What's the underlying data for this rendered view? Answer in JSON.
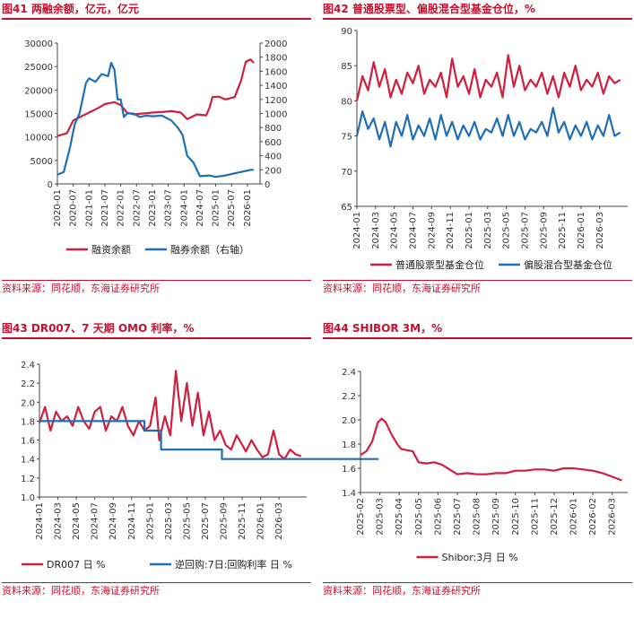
{
  "colors": {
    "red": "#d21e3c",
    "blue": "#1f6fb8",
    "accent": "#c8102e"
  },
  "charts": [
    {
      "id": "c41",
      "title": "图41 两融余额，亿元，亿元",
      "source": "资料来源：同花顺，东海证券研究所",
      "chart_data": {
        "type": "line",
        "x_ticks": [
          "2020-01",
          "2020-07",
          "2021-01",
          "2021-07",
          "2022-01",
          "2022-07",
          "2023-01",
          "2023-07",
          "2024-01",
          "2024-07",
          "2025-01",
          "2025-07",
          "2026-01"
        ],
        "y_left": {
          "min": 0,
          "max": 30000,
          "ticks": [
            0,
            5000,
            10000,
            15000,
            20000,
            25000,
            30000
          ]
        },
        "y_right": {
          "min": 0,
          "max": 2000,
          "ticks": [
            0,
            200,
            400,
            600,
            800,
            1000,
            1200,
            1400,
            1600,
            1800,
            2000
          ]
        },
        "series": [
          {
            "name": "融资余额",
            "axis": "left",
            "color": "#d21e3c",
            "x": [
              2020.0,
              2020.3,
              2020.5,
              2020.7,
              2021.0,
              2021.3,
              2021.5,
              2021.8,
              2022.0,
              2022.2,
              2022.4,
              2022.7,
              2023.0,
              2023.3,
              2023.6,
              2023.9,
              2024.0,
              2024.1,
              2024.4,
              2024.7,
              2024.8,
              2024.9,
              2025.1,
              2025.3,
              2025.6,
              2025.8,
              2025.95,
              2026.1,
              2026.2
            ],
            "values": [
              10200,
              10800,
              13500,
              14200,
              15200,
              16200,
              17000,
              17400,
              16800,
              15200,
              14800,
              15000,
              15200,
              15300,
              15500,
              15200,
              14500,
              13800,
              14800,
              14600,
              16200,
              18500,
              18600,
              18000,
              18500,
              22000,
              26000,
              26500,
              25800
            ]
          },
          {
            "name": "融券余额（右轴）",
            "axis": "right",
            "color": "#1f6fb8",
            "x": [
              2020.0,
              2020.2,
              2020.4,
              2020.55,
              2020.7,
              2020.9,
              2021.0,
              2021.2,
              2021.4,
              2021.6,
              2021.7,
              2021.8,
              2021.9,
              2022.0,
              2022.1,
              2022.2,
              2022.4,
              2022.6,
              2022.8,
              2023.0,
              2023.3,
              2023.6,
              2023.8,
              2023.95,
              2024.1,
              2024.3,
              2024.5,
              2024.8,
              2025.0,
              2025.3,
              2025.6,
              2025.9,
              2026.1,
              2026.2
            ],
            "values": [
              130,
              170,
              520,
              850,
              1000,
              1430,
              1500,
              1450,
              1560,
              1530,
              1720,
              1620,
              1200,
              1200,
              950,
              1000,
              1000,
              950,
              970,
              960,
              970,
              900,
              800,
              700,
              400,
              300,
              110,
              120,
              100,
              120,
              150,
              180,
              200,
              200
            ]
          }
        ]
      }
    },
    {
      "id": "c42",
      "title": "图42 普通股票型、偏股混合型基金仓位，%",
      "source": "资料来源：同花顺，东海证券研究所",
      "chart_data": {
        "type": "line",
        "x_ticks": [
          "2024-01",
          "2024-03",
          "2024-05",
          "2024-07",
          "2024-09",
          "2024-11",
          "2025-01",
          "2025-03",
          "2025-05",
          "2025-07",
          "2025-09",
          "2025-11",
          "2026-01",
          "2026-03"
        ],
        "y_left": {
          "min": 65,
          "max": 90,
          "ticks": [
            65,
            70,
            75,
            80,
            85,
            90
          ]
        },
        "series": [
          {
            "name": "普通股票型基金仓位",
            "color": "#d21e3c",
            "x": [
              0,
              0.3,
              0.6,
              0.9,
              1.2,
              1.5,
              1.8,
              2.1,
              2.4,
              2.7,
              3.0,
              3.3,
              3.6,
              3.9,
              4.2,
              4.5,
              4.8,
              5.1,
              5.4,
              5.7,
              6.0,
              6.3,
              6.6,
              6.9,
              7.2,
              7.5,
              7.8,
              8.1,
              8.4,
              8.7,
              9.0,
              9.3,
              9.6,
              9.9,
              10.2,
              10.5,
              10.8,
              11.1,
              11.4,
              11.7,
              12.0,
              12.3,
              12.6,
              12.9,
              13.2,
              13.5,
              13.8,
              14.1
            ],
            "values": [
              80,
              83.5,
              81.5,
              85.5,
              82,
              84.5,
              80.5,
              83,
              81,
              84,
              82.5,
              85,
              81,
              83,
              82,
              84,
              80.5,
              86,
              82,
              83.5,
              81,
              84.5,
              80.5,
              83,
              82,
              84,
              80.5,
              86.5,
              82,
              85,
              81.5,
              83,
              82,
              84,
              81,
              83.5,
              80.5,
              84,
              82,
              85,
              81.5,
              83,
              82,
              84,
              81,
              83.5,
              82.5,
              83
            ]
          },
          {
            "name": "偏股混合型基金仓位",
            "color": "#1f6fb8",
            "x": [
              0,
              0.3,
              0.6,
              0.9,
              1.2,
              1.5,
              1.8,
              2.1,
              2.4,
              2.7,
              3.0,
              3.3,
              3.6,
              3.9,
              4.2,
              4.5,
              4.8,
              5.1,
              5.4,
              5.7,
              6.0,
              6.3,
              6.6,
              6.9,
              7.2,
              7.5,
              7.8,
              8.1,
              8.4,
              8.7,
              9.0,
              9.3,
              9.6,
              9.9,
              10.2,
              10.5,
              10.8,
              11.1,
              11.4,
              11.7,
              12.0,
              12.3,
              12.6,
              12.9,
              13.2,
              13.5,
              13.8,
              14.1
            ],
            "values": [
              75,
              78.5,
              76,
              77.5,
              74.5,
              77,
              73.5,
              77,
              75,
              78,
              74.5,
              76.5,
              75,
              77.5,
              74.5,
              78,
              75,
              77,
              74.5,
              76.5,
              75,
              77,
              74.5,
              76,
              75.5,
              77.5,
              75,
              78,
              75,
              77,
              74.5,
              76,
              75.5,
              77,
              75,
              79,
              75.5,
              77,
              74.5,
              76.5,
              75,
              77,
              74.5,
              76.5,
              75,
              78,
              75,
              75.5
            ]
          }
        ]
      }
    },
    {
      "id": "c43",
      "title": "图43 DR007、7 天期 OMO 利率，%",
      "source": "资料来源：同花顺，东海证券研究所",
      "chart_data": {
        "type": "line",
        "x_ticks": [
          "2024-01",
          "2024-03",
          "2024-05",
          "2024-07",
          "2024-09",
          "2024-11",
          "2025-01",
          "2025-03",
          "2025-05",
          "2025-07",
          "2025-09",
          "2025-11",
          "2026-01",
          "2026-03"
        ],
        "y_left": {
          "min": 1.0,
          "max": 2.4,
          "ticks": [
            1.0,
            1.2,
            1.4,
            1.6,
            1.8,
            2.0,
            2.2,
            2.4
          ]
        },
        "series": [
          {
            "name": "DR007 日 %",
            "color": "#d21e3c",
            "x": [
              0,
              0.3,
              0.6,
              0.9,
              1.2,
              1.5,
              1.8,
              2.1,
              2.4,
              2.7,
              3.0,
              3.3,
              3.6,
              3.9,
              4.2,
              4.5,
              4.8,
              5.1,
              5.4,
              5.7,
              6.0,
              6.3,
              6.5,
              6.8,
              7.1,
              7.4,
              7.7,
              8.0,
              8.3,
              8.6,
              8.9,
              9.2,
              9.5,
              9.8,
              10.1,
              10.4,
              10.7,
              11.0,
              11.2,
              11.5,
              11.8,
              12.1,
              12.4,
              12.7,
              13.0,
              13.3,
              13.6,
              13.9,
              14.2
            ],
            "values": [
              1.78,
              1.95,
              1.7,
              1.9,
              1.8,
              1.85,
              1.75,
              1.95,
              1.8,
              1.72,
              1.9,
              1.95,
              1.7,
              1.85,
              1.8,
              1.95,
              1.75,
              1.65,
              1.8,
              1.7,
              1.75,
              2.05,
              1.6,
              1.85,
              1.65,
              2.33,
              1.8,
              2.2,
              1.75,
              2.1,
              1.65,
              1.9,
              1.6,
              1.7,
              1.55,
              1.5,
              1.65,
              1.55,
              1.48,
              1.6,
              1.5,
              1.42,
              1.45,
              1.7,
              1.45,
              1.4,
              1.5,
              1.45,
              1.43
            ]
          },
          {
            "name": "逆回购:7日:回购利率 日 %",
            "color": "#1f6fb8",
            "x": [
              0,
              5.7,
              5.7,
              6.6,
              6.6,
              8.0,
              8.0,
              9.9,
              9.9,
              17.2,
              17.2,
              18.4
            ],
            "values": [
              1.8,
              1.8,
              1.7,
              1.7,
              1.5,
              1.5,
              1.5,
              1.5,
              1.4,
              1.4,
              1.4,
              1.4
            ]
          }
        ]
      }
    },
    {
      "id": "c44",
      "title": "图44 SHIBOR 3M，%",
      "source": "资料来源：同花顺，东海证券研究所",
      "chart_data": {
        "type": "line",
        "x_ticks": [
          "2025-02",
          "2025-03",
          "2025-04",
          "2025-05",
          "2025-06",
          "2025-07",
          "2025-08",
          "2025-09",
          "2025-10",
          "2025-11",
          "2025-12",
          "2026-01",
          "2026-02",
          "2026-03"
        ],
        "y_left": {
          "min": 1.4,
          "max": 2.4,
          "ticks": [
            1.4,
            1.6,
            1.8,
            2.0,
            2.2,
            2.4
          ]
        },
        "series": [
          {
            "name": "Shibor:3月 日 %",
            "color": "#d21e3c",
            "x": [
              0,
              0.3,
              0.6,
              0.9,
              1.1,
              1.3,
              1.6,
              1.9,
              2.1,
              2.4,
              2.7,
              3.0,
              3.4,
              3.8,
              4.2,
              4.6,
              5.0,
              5.5,
              6.0,
              6.5,
              7.0,
              7.5,
              8.0,
              8.5,
              9.0,
              9.5,
              10.0,
              10.5,
              11.0,
              11.5,
              12.0,
              12.5,
              13.0,
              13.5
            ],
            "values": [
              1.71,
              1.74,
              1.82,
              1.98,
              2.01,
              1.98,
              1.88,
              1.8,
              1.76,
              1.75,
              1.74,
              1.65,
              1.64,
              1.65,
              1.63,
              1.59,
              1.55,
              1.56,
              1.55,
              1.55,
              1.56,
              1.56,
              1.58,
              1.58,
              1.59,
              1.59,
              1.58,
              1.6,
              1.6,
              1.59,
              1.58,
              1.56,
              1.53,
              1.5
            ]
          }
        ]
      }
    }
  ]
}
